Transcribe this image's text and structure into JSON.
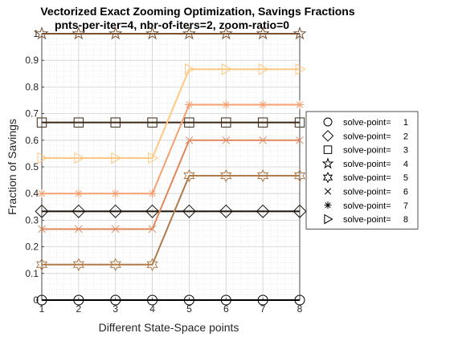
{
  "chart_data": {
    "type": "line",
    "title": "Vectorized Exact Zooming Optimization, Savings Fractions",
    "subtitle": "pnts-per-iter=4, nbr-of-iters=2, zoom-ratio=0",
    "xlabel": "Different State-Space points",
    "ylabel": "Fraction of Savings",
    "xlim": [
      1,
      8
    ],
    "ylim": [
      0,
      1
    ],
    "xticks": [
      "1",
      "2",
      "3",
      "4",
      "5",
      "6",
      "7",
      "8"
    ],
    "yticks": [
      "0",
      "0.1",
      "0.2",
      "0.3",
      "0.4",
      "0.5",
      "0.6",
      "0.7",
      "0.8",
      "0.9",
      "1"
    ],
    "grid": true,
    "minor_grid": true,
    "legend_position": "right",
    "x": [
      1,
      2,
      3,
      4,
      5,
      6,
      7,
      8
    ],
    "series": [
      {
        "name": "solve-point=",
        "number": "1",
        "color": "#000000",
        "marker": "circle",
        "values": [
          0,
          0,
          0,
          0,
          0,
          0,
          0,
          0
        ]
      },
      {
        "name": "solve-point=",
        "number": "2",
        "color": "#1a1208",
        "marker": "diamond",
        "values": [
          0.3333,
          0.3333,
          0.3333,
          0.3333,
          0.3333,
          0.3333,
          0.3333,
          0.3333
        ]
      },
      {
        "name": "solve-point=",
        "number": "3",
        "color": "#3a2816",
        "marker": "square",
        "values": [
          0.6667,
          0.6667,
          0.6667,
          0.6667,
          0.6667,
          0.6667,
          0.6667,
          0.6667
        ]
      },
      {
        "name": "solve-point=",
        "number": "4",
        "color": "#7a5232",
        "marker": "pentagram",
        "values": [
          1,
          1,
          1,
          1,
          1,
          1,
          1,
          1
        ]
      },
      {
        "name": "solve-point=",
        "number": "5",
        "color": "#b07a4a",
        "marker": "hexagram",
        "values": [
          0.1333,
          0.1333,
          0.1333,
          0.1333,
          0.4667,
          0.4667,
          0.4667,
          0.4667
        ]
      },
      {
        "name": "solve-point=",
        "number": "6",
        "color": "#e0875a",
        "marker": "x",
        "values": [
          0.2667,
          0.2667,
          0.2667,
          0.2667,
          0.6,
          0.6,
          0.6,
          0.6
        ]
      },
      {
        "name": "solve-point=",
        "number": "7",
        "color": "#f4a070",
        "marker": "asterisk",
        "values": [
          0.4,
          0.4,
          0.4,
          0.4,
          0.7333,
          0.7333,
          0.7333,
          0.7333
        ]
      },
      {
        "name": "solve-point=",
        "number": "8",
        "color": "#ffc880",
        "marker": "triangle-right",
        "values": [
          0.5333,
          0.5333,
          0.5333,
          0.5333,
          0.8667,
          0.8667,
          0.8667,
          0.8667
        ]
      }
    ]
  }
}
